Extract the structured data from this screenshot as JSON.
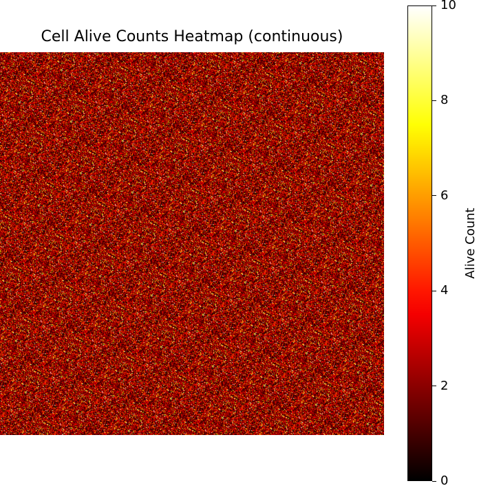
{
  "chart_data": {
    "type": "heatmap",
    "title": "Cell Alive Counts Heatmap (continuous)",
    "xlabel": "",
    "ylabel": "",
    "axes_visible": false,
    "colormap": "hot",
    "colorbar": {
      "label": "Alive Count",
      "vmin": 0,
      "vmax": 10,
      "ticks": [
        0,
        2,
        4,
        6,
        8,
        10
      ],
      "tick_labels": [
        "0",
        "2",
        "4",
        "6",
        "8",
        "10"
      ]
    },
    "grid": false,
    "data_description": "dense random grid of alive counts, values mostly between 0 and 4 with sparse bright cells up to 10"
  },
  "colors": {
    "background": "#ffffff",
    "colormap_stops": [
      "#000000",
      "#e60000",
      "#ffd200",
      "#ffffff"
    ]
  }
}
